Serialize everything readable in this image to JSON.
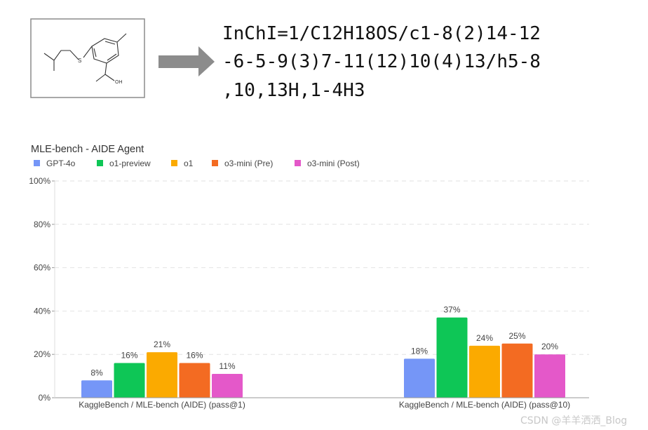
{
  "molecule": {
    "inchi_lines": [
      "InChI=1/C12H18OS/c1-8(2)14-12",
      "-6-5-9(3)7-11(12)10(4)13/h5-8",
      ",10,13H,1-4H3"
    ],
    "atom_labels": [
      "S",
      "OH"
    ],
    "arrow_icon": "right-arrow-icon"
  },
  "chart_data": {
    "type": "bar",
    "title": "MLE-bench - AIDE Agent",
    "xlabel": "",
    "ylabel": "",
    "categories": [
      "KaggleBench / MLE-bench (AIDE) (pass@1)",
      "KaggleBench / MLE-bench (AIDE) (pass@10)"
    ],
    "series": [
      {
        "name": "GPT-4o",
        "values": [
          8,
          18
        ],
        "color": "#7596f7"
      },
      {
        "name": "o1-preview",
        "values": [
          16,
          37
        ],
        "color": "#0ec656"
      },
      {
        "name": "o1",
        "values": [
          21,
          24
        ],
        "color": "#fbaa00"
      },
      {
        "name": "o3-mini (Pre)",
        "values": [
          16,
          25
        ],
        "color": "#f36b22"
      },
      {
        "name": "o3-mini (Post)",
        "values": [
          11,
          20
        ],
        "color": "#e458c9"
      }
    ],
    "ylim": [
      0,
      100
    ],
    "yticks": [
      "0%",
      "20%",
      "40%",
      "60%",
      "80%",
      "100%"
    ],
    "value_suffix": "%",
    "grid": true,
    "legend_position": "top-left"
  },
  "watermark": "CSDN @羊羊洒洒_Blog"
}
